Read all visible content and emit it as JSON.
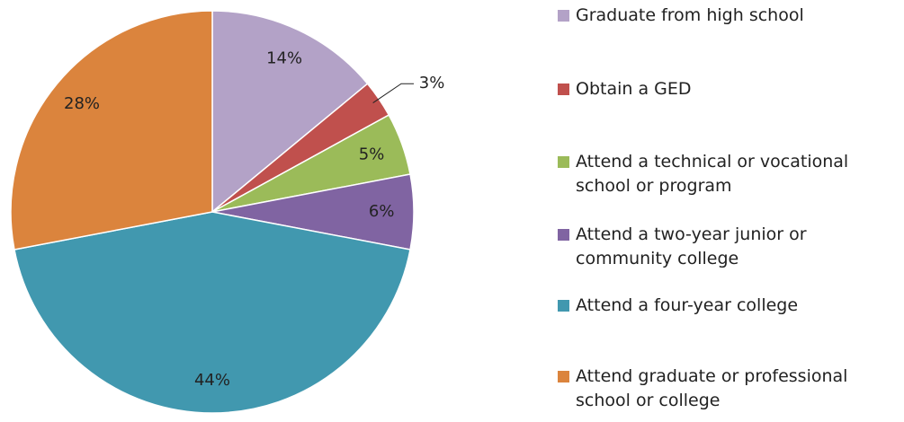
{
  "chart_data": {
    "type": "pie",
    "categories": [
      "Graduate from high school",
      "Obtain a GED",
      "Attend a technical or vocational school or program",
      "Attend a two-year junior or community college",
      "Attend a four-year college",
      "Attend graduate or professional school or college"
    ],
    "values": [
      14,
      3,
      5,
      6,
      44,
      28
    ],
    "value_labels": [
      "14%",
      "3%",
      "5%",
      "6%",
      "44%",
      "28%"
    ],
    "colors": [
      "#b3a2c7",
      "#c0504d",
      "#9bbb59",
      "#8064a2",
      "#4198af",
      "#db843d"
    ],
    "legend": "right"
  }
}
